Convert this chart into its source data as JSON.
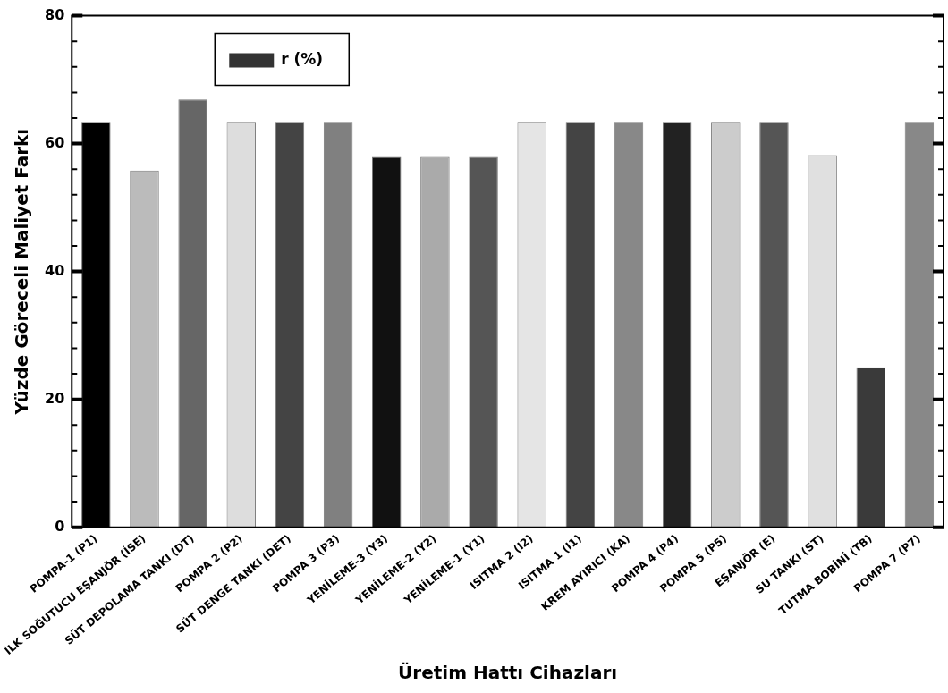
{
  "chart_data": {
    "type": "bar",
    "xlabel": "Üretim Hattı Cihazları",
    "ylabel": "Yüzde Göreceli Maliyet Farkı",
    "categories": [
      "POMPA-1 (P1)",
      "İLK SOĞUTUCU EŞANJÖR (İSE)",
      "SÜT DEPOLAMA TANKI (DT)",
      "POMPA 2 (P2)",
      "SÜT DENGE TANKI (DET)",
      "POMPA 3 (P3)",
      "YENİLEME-3 (Y3)",
      "YENİLEME-2 (Y2)",
      "YENİLEME-1 (Y1)",
      "ISITMA 2 (I2)",
      "ISITMA 1 (I1)",
      "KREM AYIRICI (KA)",
      "POMPA 4 (P4)",
      "POMPA 5 (P5)",
      "EŞANJÖR (E)",
      "SU TANKI (ST)",
      "TUTMA BOBİNİ (TB)",
      "POMPA 7 (P7)"
    ],
    "series": [
      {
        "name": "r (%)",
        "color": "#333333",
        "colors": [
          "#000000",
          "#bbbbbb",
          "#666666",
          "#dddddd",
          "#444444",
          "#808080",
          "#111111",
          "#aaaaaa",
          "#555555",
          "#e5e5e5",
          "#444444",
          "#888888",
          "#222222",
          "#cccccc",
          "#555555",
          "#e0e0e0",
          "#3a3a3a",
          "#888888"
        ],
        "values": [
          63.4,
          55.8,
          66.9,
          63.4,
          63.4,
          63.4,
          57.9,
          57.9,
          57.9,
          63.4,
          63.4,
          63.4,
          63.4,
          63.4,
          63.4,
          58.2,
          25.0,
          63.4
        ]
      }
    ],
    "ylim": [
      0,
      80
    ],
    "yticks": [
      0,
      {
        "value": 4,
        "label": null
      },
      {
        "value": 8,
        "label": null
      },
      {
        "value": 12,
        "label": null
      },
      {
        "value": 16,
        "label": null
      },
      20,
      {
        "value": 24,
        "label": null
      },
      {
        "value": 28,
        "label": null
      },
      {
        "value": 32,
        "label": null
      },
      {
        "value": 36,
        "label": null
      },
      40,
      {
        "value": 44,
        "label": null
      },
      {
        "value": 48,
        "label": null
      },
      {
        "value": 52,
        "label": null
      },
      {
        "value": 56,
        "label": null
      },
      60,
      {
        "value": 64,
        "label": null
      },
      {
        "value": 68,
        "label": null
      },
      {
        "value": 72,
        "label": null
      },
      {
        "value": 76,
        "label": null
      },
      80
    ],
    "grid": false,
    "legend": "top left"
  }
}
